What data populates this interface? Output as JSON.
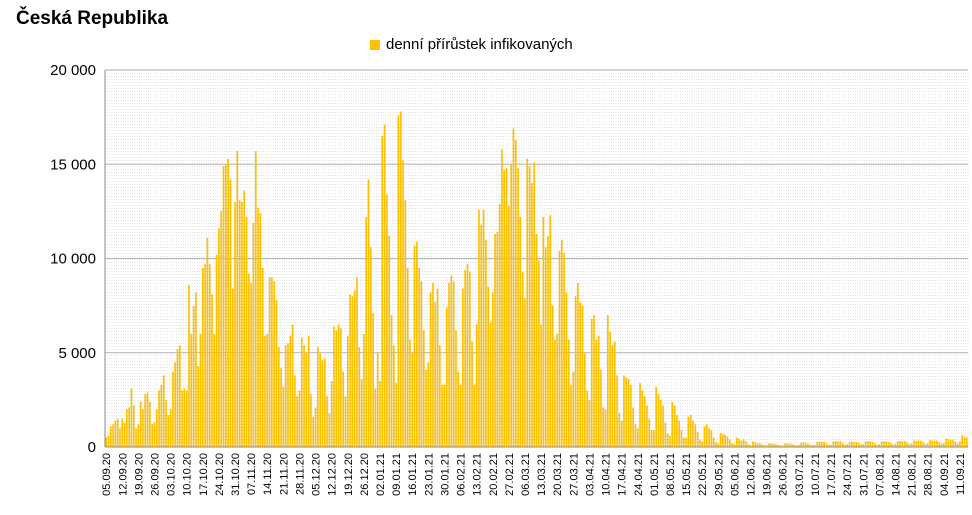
{
  "chart_data": {
    "type": "bar",
    "title": "Česká Republika",
    "xlabel": "",
    "ylabel": "",
    "series": [
      {
        "name": "denní přírůstek infikovaných",
        "color": "#ffc000"
      }
    ],
    "ylim": [
      0,
      20000
    ],
    "y_ticks": [
      {
        "value": 0,
        "label": "0"
      },
      {
        "value": 5000,
        "label": "5 000"
      },
      {
        "value": 10000,
        "label": "10 000"
      },
      {
        "value": 15000,
        "label": "15 000"
      },
      {
        "value": 20000,
        "label": "20 000"
      }
    ],
    "grid": true,
    "legend_position": "top-center",
    "x_tick_labels": [
      "05.09.20",
      "12.09.20",
      "19.09.20",
      "26.09.20",
      "03.10.20",
      "10.10.20",
      "17.10.20",
      "24.10.20",
      "31.10.20",
      "07.11.20",
      "14.11.20",
      "21.11.20",
      "28.11.20",
      "05.12.20",
      "12.12.20",
      "19.12.20",
      "26.12.20",
      "02.01.21",
      "09.01.21",
      "16.01.21",
      "23.01.21",
      "30.01.21",
      "06.02.21",
      "13.02.21",
      "20.02.21",
      "27.02.21",
      "06.03.21",
      "13.03.21",
      "20.03.21",
      "27.03.21",
      "03.04.21",
      "10.04.21",
      "17.04.21",
      "24.04.21",
      "01.05.21",
      "08.05.21",
      "15.05.21",
      "22.05.21",
      "29.05.21",
      "05.06.21",
      "12.06.21",
      "19.06.21",
      "26.06.21",
      "03.07.21",
      "10.07.21",
      "17.07.21",
      "24.07.21",
      "31.07.21",
      "07.08.21",
      "14.08.21",
      "21.08.21",
      "28.08.21",
      "04.09.21",
      "11.09.21"
    ],
    "weekly_values": [
      [
        500,
        600,
        1100,
        1200,
        1400,
        1500,
        1000
      ],
      [
        1500,
        1300,
        2000,
        2100,
        3100,
        2200,
        1000
      ],
      [
        1200,
        2400,
        2000,
        2800,
        2900,
        2400,
        1200
      ],
      [
        1300,
        2000,
        3000,
        3300,
        3800,
        2500,
        1700
      ],
      [
        2000,
        4000,
        4500,
        5200,
        5400,
        3000,
        3100
      ],
      [
        3000,
        8600,
        6000,
        7500,
        8200,
        4300,
        6000
      ],
      [
        9500,
        9700,
        11100,
        9700,
        8100,
        6000,
        10200
      ],
      [
        11600,
        12500,
        14900,
        15000,
        15300,
        14200,
        8400
      ],
      [
        13000,
        15700,
        13100,
        13000,
        13600,
        12200,
        9200
      ],
      [
        8700,
        11900,
        15700,
        12700,
        12400,
        9500,
        5900
      ],
      [
        6000,
        9000,
        9000,
        8800,
        7800,
        5300,
        4200
      ],
      [
        3200,
        5400,
        5500,
        5900,
        6500,
        3800,
        2700
      ],
      [
        3000,
        5800,
        5400,
        5000,
        5900,
        2800,
        1600
      ],
      [
        2100,
        5300,
        5000,
        4600,
        4700,
        2700,
        1800
      ],
      [
        3500,
        6400,
        6200,
        6500,
        6300,
        4000,
        2700
      ],
      [
        5900,
        8100,
        8000,
        8300,
        9000,
        5300,
        3600
      ],
      [
        6000,
        12200,
        14200,
        10600,
        7100,
        3100,
        5000
      ],
      [
        3500,
        16500,
        17100,
        13400,
        11200,
        7000,
        5400
      ],
      [
        3400,
        17600,
        17800,
        15200,
        13100,
        9500,
        5700
      ],
      [
        5000,
        10700,
        10900,
        9500,
        8800,
        6200,
        4100
      ],
      [
        4500,
        8200,
        8700,
        7700,
        8400,
        5400,
        3300
      ],
      [
        3300,
        7400,
        8700,
        9100,
        8800,
        6200,
        4000
      ],
      [
        3300,
        8400,
        9400,
        9700,
        9300,
        5600,
        3300
      ],
      [
        6500,
        12600,
        11800,
        12600,
        11000,
        8500,
        6600
      ],
      [
        8200,
        11300,
        11400,
        12900,
        15800,
        14700,
        14800
      ],
      [
        12800,
        15000,
        16900,
        16300,
        14800,
        12200,
        9300
      ],
      [
        7900,
        15300,
        14900,
        14000,
        15100,
        11300,
        9900
      ],
      [
        6500,
        12200,
        10600,
        11200,
        12300,
        7500,
        5700
      ],
      [
        6000,
        10400,
        11000,
        10300,
        8200,
        5700,
        3300
      ],
      [
        4000,
        8000,
        8700,
        7700,
        7500,
        5000,
        3000
      ],
      [
        2500,
        6800,
        7000,
        5700,
        5900,
        4100,
        2100
      ],
      [
        2000,
        7000,
        6100,
        5400,
        5600,
        3800,
        1800
      ],
      [
        1400,
        3800,
        3700,
        3600,
        3300,
        2100,
        1200
      ],
      [
        1000,
        3400,
        3000,
        2700,
        2200,
        1500,
        900
      ],
      [
        900,
        3200,
        2800,
        2500,
        2200,
        1300,
        700
      ],
      [
        600,
        2400,
        2200,
        1700,
        1400,
        900,
        500
      ],
      [
        500,
        1600,
        1700,
        1400,
        1200,
        800,
        400
      ],
      [
        300,
        1100,
        1200,
        1000,
        900,
        500,
        250
      ],
      [
        200,
        750,
        700,
        650,
        550,
        400,
        200
      ],
      [
        150,
        500,
        450,
        350,
        400,
        300,
        150
      ],
      [
        100,
        300,
        250,
        200,
        200,
        150,
        100
      ],
      [
        80,
        200,
        180,
        180,
        150,
        120,
        70
      ],
      [
        80,
        200,
        200,
        180,
        150,
        120,
        80
      ],
      [
        100,
        220,
        250,
        200,
        180,
        120,
        100
      ],
      [
        100,
        280,
        300,
        260,
        280,
        200,
        120
      ],
      [
        120,
        300,
        320,
        280,
        300,
        220,
        120
      ],
      [
        150,
        250,
        300,
        280,
        260,
        220,
        140
      ],
      [
        150,
        280,
        320,
        290,
        270,
        200,
        120
      ],
      [
        150,
        280,
        300,
        290,
        270,
        220,
        140
      ],
      [
        180,
        300,
        320,
        300,
        310,
        240,
        160
      ],
      [
        180,
        350,
        330,
        350,
        330,
        250,
        160
      ],
      [
        200,
        380,
        350,
        330,
        350,
        250,
        180
      ],
      [
        200,
        450,
        420,
        380,
        400,
        300,
        200
      ],
      [
        300,
        620,
        550,
        520
      ]
    ]
  }
}
